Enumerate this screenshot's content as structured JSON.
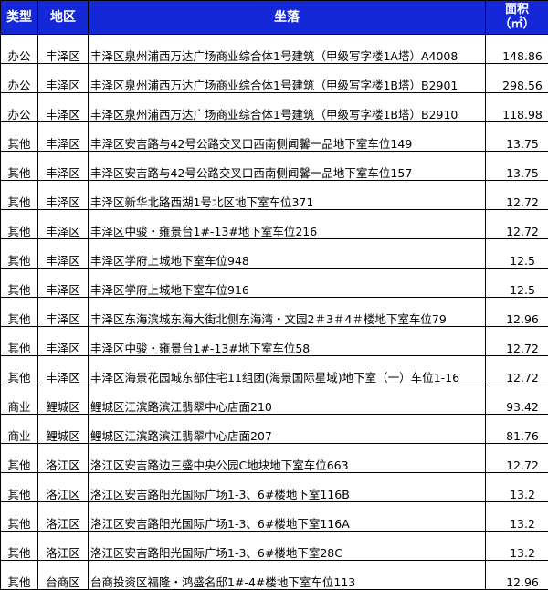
{
  "header": {
    "type": "类型",
    "district": "地区",
    "location": "坐落",
    "area_line1": "面积",
    "area_line2": "（㎡）",
    "header_color": "#1428d8"
  },
  "rows": [
    {
      "type": "办公",
      "district": "丰泽区",
      "location": "丰泽区泉州浦西万达广场商业综合体1号建筑（甲级写字楼1A塔）A4008",
      "area": "148.86"
    },
    {
      "type": "办公",
      "district": "丰泽区",
      "location": "丰泽区泉州浦西万达广场商业综合体1号建筑（甲级写字楼1B塔）B2901",
      "area": "298.56"
    },
    {
      "type": "办公",
      "district": "丰泽区",
      "location": "丰泽区泉州浦西万达广场商业综合体1号建筑（甲级写字楼1B塔）B2910",
      "area": "118.98"
    },
    {
      "type": "其他",
      "district": "丰泽区",
      "location": "丰泽区安吉路与42号公路交叉口西南侧闻馨一品地下室车位149",
      "area": "13.75"
    },
    {
      "type": "其他",
      "district": "丰泽区",
      "location": "丰泽区安吉路与42号公路交叉口西南侧闻馨一品地下室车位157",
      "area": "13.75"
    },
    {
      "type": "其他",
      "district": "丰泽区",
      "location": "丰泽区新华北路西湖1号北区地下室车位371",
      "area": "12.72"
    },
    {
      "type": "其他",
      "district": "丰泽区",
      "location": "丰泽区中骏・雍景台1#-13#地下室车位216",
      "area": "12.72"
    },
    {
      "type": "其他",
      "district": "丰泽区",
      "location": "丰泽区学府上城地下室车位948",
      "area": "12.5"
    },
    {
      "type": "其他",
      "district": "丰泽区",
      "location": "丰泽区学府上城地下室车位916",
      "area": "12.5"
    },
    {
      "type": "其他",
      "district": "丰泽区",
      "location": "丰泽区东海滨城东海大街北侧东海湾・文园2＃3＃4＃楼地下室车位79",
      "area": "12.96"
    },
    {
      "type": "其他",
      "district": "丰泽区",
      "location": "丰泽区中骏・雍景台1#-13#地下室车位58",
      "area": "12.72"
    },
    {
      "type": "其他",
      "district": "丰泽区",
      "location": "丰泽区海景花园城东部住宅11组团(海景国际星域)地下室（一）车位1-16",
      "area": "12.72"
    },
    {
      "type": "商业",
      "district": "鲤城区",
      "location": "鲤城区江滨路滨江翡翠中心店面210",
      "area": "93.42"
    },
    {
      "type": "商业",
      "district": "鲤城区",
      "location": "鲤城区江滨路滨江翡翠中心店面207",
      "area": "81.76"
    },
    {
      "type": "其他",
      "district": "洛江区",
      "location": "洛江区安吉路边三盛中央公园C地块地下室车位663",
      "area": "12.72"
    },
    {
      "type": "其他",
      "district": "洛江区",
      "location": "洛江区安吉路阳光国际广场1-3、6#楼地下室116B",
      "area": "13.2"
    },
    {
      "type": "其他",
      "district": "洛江区",
      "location": "洛江区安吉路阳光国际广场1-3、6#楼地下室116A",
      "area": "13.2"
    },
    {
      "type": "其他",
      "district": "洛江区",
      "location": "洛江区安吉路阳光国际广场1-3、6#楼地下室28C",
      "area": "13.2"
    },
    {
      "type": "其他",
      "district": "台商区",
      "location": "台商投资区福隆・鸿盛名邸1#-4#楼地下室车位113",
      "area": "12.96"
    }
  ]
}
